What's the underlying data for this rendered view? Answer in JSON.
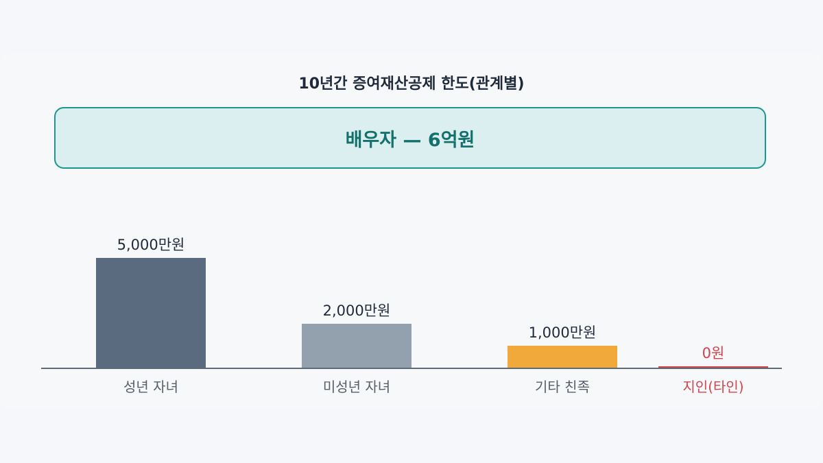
{
  "title": "10년간 증여재산공제 한도(관계별)",
  "banner": {
    "text": "배우자 — 6억원"
  },
  "chart_data": {
    "type": "bar",
    "title": "10년간 증여재산공제 한도(관계별)",
    "categories": [
      "성년 자녀",
      "미성년 자녀",
      "기타 친족",
      "지인(타인)"
    ],
    "values": [
      5000,
      2000,
      1000,
      0
    ],
    "value_unit": "만원",
    "data_labels": [
      "5,000만원",
      "2,000만원",
      "1,000만원",
      "0원"
    ],
    "colors": [
      "#5a6b80",
      "#93a0ad",
      "#f2a93b",
      "#d0444e"
    ],
    "label_colors": [
      "#1e2a3a",
      "#1e2a3a",
      "#1e2a3a",
      "#d0444e"
    ],
    "category_label_colors": [
      "#555e69",
      "#555e69",
      "#555e69",
      "#d0444e"
    ],
    "ylim": [
      0,
      5000
    ],
    "grid": false,
    "legend": "none"
  }
}
